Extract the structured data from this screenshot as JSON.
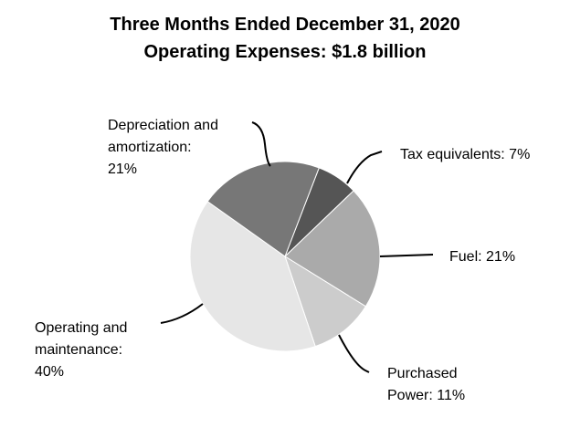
{
  "chart_data": {
    "type": "pie",
    "title": "Three Months Ended December 31, 2020",
    "subtitle": "Operating Expenses: $1.8 billion",
    "slices": [
      {
        "label_line1": "Tax equivalents: 7%",
        "label_line2": "",
        "label_line3": "",
        "value": 7,
        "color": "#555555"
      },
      {
        "label_line1": "Fuel: 21%",
        "label_line2": "",
        "label_line3": "",
        "value": 21,
        "color": "#aaaaaa"
      },
      {
        "label_line1": "Purchased",
        "label_line2": "Power: 11%",
        "label_line3": "",
        "value": 11,
        "color": "#cccccc"
      },
      {
        "label_line1": "Operating and",
        "label_line2": "maintenance:",
        "label_line3": "40%",
        "value": 40,
        "color": "#e6e6e6"
      },
      {
        "label_line1": "Depreciation and",
        "label_line2": "amortization:",
        "label_line3": "21%",
        "value": 21,
        "color": "#777777"
      }
    ]
  }
}
